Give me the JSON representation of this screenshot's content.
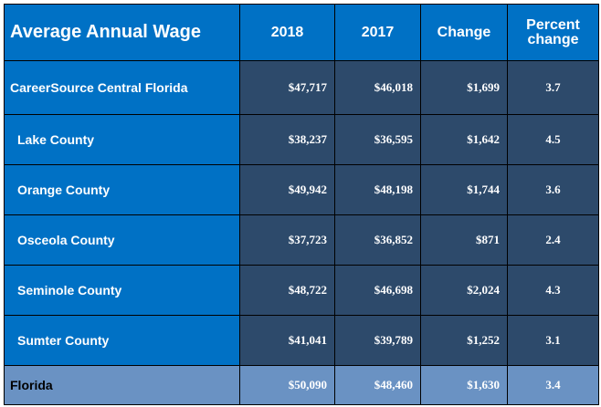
{
  "colors": {
    "header_blue": "#0071c5",
    "data_navy": "#2d4a6b",
    "total_row_blue": "#6a92c3",
    "border": "#000000",
    "text": "#ffffff"
  },
  "chart_data": {
    "type": "table",
    "title": "Average Annual Wage",
    "columns": [
      "2018",
      "2017",
      "Change",
      "Percent change"
    ],
    "rows": [
      {
        "label": "CareerSource Central Florida",
        "y2018": "$47,717",
        "y2017": "$46,018",
        "change": "$1,699",
        "pct": "3.7"
      },
      {
        "label": "Lake County",
        "y2018": "$38,237",
        "y2017": "$36,595",
        "change": "$1,642",
        "pct": "4.5"
      },
      {
        "label": "Orange County",
        "y2018": "$49,942",
        "y2017": "$48,198",
        "change": "$1,744",
        "pct": "3.6"
      },
      {
        "label": "Osceola County",
        "y2018": "$37,723",
        "y2017": "$36,852",
        "change": "$871",
        "pct": "2.4"
      },
      {
        "label": "Seminole County",
        "y2018": "$48,722",
        "y2017": "$46,698",
        "change": "$2,024",
        "pct": "4.3"
      },
      {
        "label": "Sumter County",
        "y2018": "$41,041",
        "y2017": "$39,789",
        "change": "$1,252",
        "pct": "3.1"
      },
      {
        "label": "Florida",
        "y2018": "$50,090",
        "y2017": "$48,460",
        "change": "$1,630",
        "pct": "3.4"
      }
    ]
  }
}
